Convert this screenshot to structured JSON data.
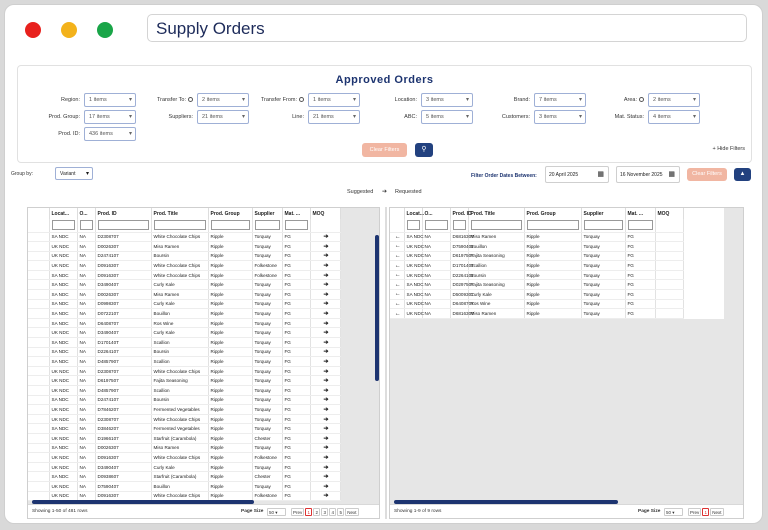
{
  "window": {
    "title": "Supply Orders",
    "dots": [
      "#e8211d",
      "#f3b21b",
      "#19a548"
    ]
  },
  "filters": {
    "title": "Approved Orders",
    "fields": [
      {
        "label": "Region:",
        "value": "1 items"
      },
      {
        "label": "Transfer To:",
        "value": "2 items"
      },
      {
        "label": "Transfer From:",
        "value": "1 items"
      },
      {
        "label": "Location:",
        "value": "3 items"
      },
      {
        "label": "Brand:",
        "value": "7 items"
      },
      {
        "label": "Area:",
        "value": "2 items"
      },
      {
        "label": "Prod. Group:",
        "value": "17 items"
      },
      {
        "label": "Suppliers:",
        "value": "21 items"
      },
      {
        "label": "Line:",
        "value": "21 items"
      },
      {
        "label": "ABC:",
        "value": "5 items"
      },
      {
        "label": "Customers:",
        "value": "3 items"
      },
      {
        "label": "Mat. Status:",
        "value": "4 items"
      },
      {
        "label": "Prod. ID:",
        "value": "436 items"
      }
    ],
    "clear": "Clear Filters",
    "hide": "Hide Filters"
  },
  "toolbar": {
    "group_label": "Group by:",
    "group_value": "Variant",
    "dates_label": "Filter Order Dates Between:",
    "date_from": "20 April 2025",
    "date_to": "16 November 2025",
    "clear": "Clear Filters"
  },
  "transfer": {
    "left": "Suggested",
    "arrow": "➔",
    "right": "Requested"
  },
  "left": {
    "columns": [
      "Locat...",
      "O...",
      "Prod. ID",
      "Prod. Title",
      "Prod. Group",
      "Supplier",
      "Mat. ...",
      "MOQ"
    ],
    "rows": [
      [
        "SA NDC",
        "NA",
        "D2308707",
        "White Chocolate Chips",
        "Ripple",
        "Torquay",
        "FG"
      ],
      [
        "UK NDC",
        "NA",
        "D0026307",
        "Miso Ramen",
        "Ripple",
        "Torquay",
        "FG"
      ],
      [
        "UK NDC",
        "NA",
        "D2474107",
        "Boursin",
        "Ripple",
        "Torquay",
        "FG"
      ],
      [
        "UK NDC",
        "NA",
        "D0916307",
        "White Chocolate Chips",
        "Ripple",
        "Folkestone",
        "FG"
      ],
      [
        "SA NDC",
        "NA",
        "D0916307",
        "White Chocolate Chips",
        "Ripple",
        "Folkestone",
        "FG"
      ],
      [
        "SA NDC",
        "NA",
        "D3490407",
        "Curly Kale",
        "Ripple",
        "Torquay",
        "FG"
      ],
      [
        "SA NDC",
        "NA",
        "D0026307",
        "Miso Ramen",
        "Ripple",
        "Torquay",
        "FG"
      ],
      [
        "SA NDC",
        "NA",
        "D0998307",
        "Curly Kale",
        "Ripple",
        "Torquay",
        "FG"
      ],
      [
        "SA NDC",
        "NA",
        "D0722107",
        "Bouillon",
        "Ripple",
        "Torquay",
        "FG"
      ],
      [
        "SA NDC",
        "NA",
        "D6408707",
        "Ros Wine",
        "Ripple",
        "Torquay",
        "FG"
      ],
      [
        "UK NDC",
        "NA",
        "D3490407",
        "Curly Kale",
        "Ripple",
        "Torquay",
        "FG"
      ],
      [
        "SA NDC",
        "NA",
        "D170140T",
        "Scallion",
        "Ripple",
        "Torquay",
        "FG"
      ],
      [
        "SA NDC",
        "NA",
        "D2264107",
        "Boursin",
        "Ripple",
        "Torquay",
        "FG"
      ],
      [
        "SA NDC",
        "NA",
        "D4857907",
        "Scallion",
        "Ripple",
        "Torquay",
        "FG"
      ],
      [
        "UK NDC",
        "NA",
        "D2308707",
        "White Chocolate Chips",
        "Ripple",
        "Torquay",
        "FG"
      ],
      [
        "UK NDC",
        "NA",
        "D6197507",
        "Fajita Seasoning",
        "Ripple",
        "Torquay",
        "FG"
      ],
      [
        "UK NDC",
        "NA",
        "D4857907",
        "Scallion",
        "Ripple",
        "Torquay",
        "FG"
      ],
      [
        "SA NDC",
        "NA",
        "D2474107",
        "Boursin",
        "Ripple",
        "Torquay",
        "FG"
      ],
      [
        "UK NDC",
        "NA",
        "D7846207",
        "Fermented Vegetables",
        "Ripple",
        "Torquay",
        "FG"
      ],
      [
        "UK NDC",
        "NA",
        "D2308707",
        "White Chocolate Chips",
        "Ripple",
        "Torquay",
        "FG"
      ],
      [
        "SA NDC",
        "NA",
        "D3846207",
        "Fermented Vegetables",
        "Ripple",
        "Torquay",
        "FG"
      ],
      [
        "UK NDC",
        "NA",
        "D1966107",
        "Starfruit (Carambola)",
        "Ripple",
        "Chester",
        "FG"
      ],
      [
        "SA NDC",
        "NA",
        "D0026307",
        "Miso Ramen",
        "Ripple",
        "Torquay",
        "FG"
      ],
      [
        "UK NDC",
        "NA",
        "D0916307",
        "White Chocolate Chips",
        "Ripple",
        "Folkestone",
        "FG"
      ],
      [
        "UK NDC",
        "NA",
        "D3490407",
        "Curly Kale",
        "Ripple",
        "Torquay",
        "FG"
      ],
      [
        "SA NDC",
        "NA",
        "D0938607",
        "Starfruit (Carambola)",
        "Ripple",
        "Chester",
        "FG"
      ],
      [
        "UK NDC",
        "NA",
        "D7590407",
        "Bouillon",
        "Ripple",
        "Torquay",
        "FG"
      ],
      [
        "UK NDC",
        "NA",
        "D0916307",
        "White Chocolate Chips",
        "Ripple",
        "Folkestone",
        "FG"
      ]
    ],
    "footer": "Showing 1-50 of 481 rows",
    "page_size_label": "Page Size",
    "page_size": "50",
    "pages": [
      "Prev",
      "1",
      "2",
      "3",
      "4",
      "5",
      "Next"
    ]
  },
  "right": {
    "columns": [
      "Locat...",
      "O...",
      "Prod. ID",
      "Prod. Title",
      "Prod. Group",
      "Supplier",
      "Mat. ...",
      "MOQ"
    ],
    "rows": [
      [
        "SA NDC",
        "NA",
        "D6816307",
        "Miso Ramen",
        "Ripple",
        "Torquay",
        "FG"
      ],
      [
        "UK NDC",
        "NA",
        "D7590407",
        "Bouillon",
        "Ripple",
        "Torquay",
        "FG"
      ],
      [
        "UK NDC",
        "NA",
        "D6197507",
        "Fajita Seasoning",
        "Ripple",
        "Torquay",
        "FG"
      ],
      [
        "UK NDC",
        "NA",
        "D170140T",
        "Scallion",
        "Ripple",
        "Torquay",
        "FG"
      ],
      [
        "UK NDC",
        "NA",
        "D2264107",
        "Boursin",
        "Ripple",
        "Torquay",
        "FG"
      ],
      [
        "SA NDC",
        "NA",
        "D0297507",
        "Fajita Seasoning",
        "Ripple",
        "Torquay",
        "FG"
      ],
      [
        "SA NDC",
        "NA",
        "D5009307",
        "Curly Kale",
        "Ripple",
        "Torquay",
        "FG"
      ],
      [
        "UK NDC",
        "NA",
        "D6408707",
        "Ros Wine",
        "Ripple",
        "Torquay",
        "FG"
      ],
      [
        "UK NDC",
        "NA",
        "D6816307",
        "Miso Ramen",
        "Ripple",
        "Torquay",
        "FG"
      ]
    ],
    "footer": "Showing 1-9 of 9 rows",
    "page_size_label": "Page Size",
    "page_size": "50",
    "pages": [
      "Prev",
      "1",
      "Next"
    ]
  }
}
